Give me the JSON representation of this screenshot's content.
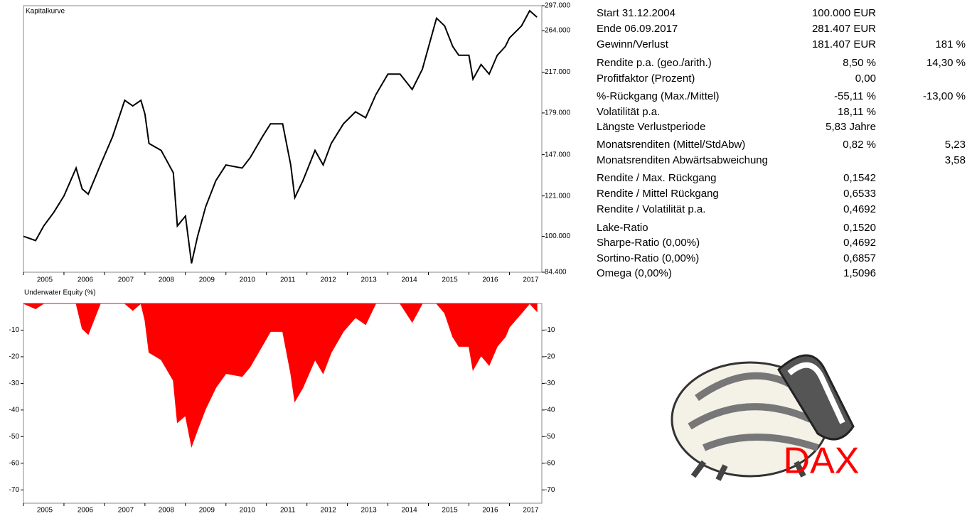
{
  "chart_data": [
    {
      "type": "line",
      "title": "Kapitalkurve",
      "log_y": true,
      "color": "#000000",
      "x": [
        2005.0,
        2005.3,
        2005.5,
        2005.75,
        2006.0,
        2006.3,
        2006.45,
        2006.6,
        2006.9,
        2007.2,
        2007.5,
        2007.7,
        2007.9,
        2008.0,
        2008.1,
        2008.4,
        2008.7,
        2008.8,
        2009.0,
        2009.15,
        2009.3,
        2009.5,
        2009.75,
        2010.0,
        2010.4,
        2010.6,
        2010.9,
        2011.1,
        2011.4,
        2011.6,
        2011.7,
        2011.9,
        2012.2,
        2012.4,
        2012.6,
        2012.9,
        2013.2,
        2013.45,
        2013.7,
        2014.0,
        2014.3,
        2014.6,
        2014.85,
        2015.2,
        2015.4,
        2015.6,
        2015.75,
        2016.0,
        2016.1,
        2016.3,
        2016.5,
        2016.7,
        2016.9,
        2017.0,
        2017.3,
        2017.5,
        2017.68
      ],
      "values": [
        100000,
        98000,
        105000,
        112000,
        121000,
        138000,
        125000,
        122000,
        140000,
        160000,
        190000,
        185000,
        190000,
        178000,
        155000,
        150000,
        135000,
        105000,
        110000,
        88000,
        100000,
        115000,
        130000,
        140000,
        138000,
        145000,
        160000,
        170000,
        170000,
        140000,
        120000,
        130000,
        150000,
        140000,
        155000,
        170000,
        180000,
        175000,
        195000,
        215000,
        215000,
        200000,
        220000,
        280000,
        270000,
        245000,
        235000,
        235000,
        210000,
        225000,
        215000,
        235000,
        245000,
        255000,
        270000,
        290000,
        281407
      ],
      "xlim": [
        2005,
        2017.8
      ],
      "xticks": [
        2005,
        2006,
        2007,
        2008,
        2009,
        2010,
        2011,
        2012,
        2013,
        2014,
        2015,
        2016,
        2017
      ],
      "ylim": [
        84400,
        297000
      ],
      "yticks": [
        {
          "value": 84400,
          "label": "84.400"
        },
        {
          "value": 100000,
          "label": "100.000"
        },
        {
          "value": 121000,
          "label": "121.000"
        },
        {
          "value": 147000,
          "label": "147.000"
        },
        {
          "value": 179000,
          "label": "179.000"
        },
        {
          "value": 217000,
          "label": "217.000"
        },
        {
          "value": 264000,
          "label": "264.000"
        },
        {
          "value": 297000,
          "label": "297.000"
        }
      ]
    },
    {
      "type": "area",
      "title": "Underwater Equity (%)",
      "color": "#ff0000",
      "x": [
        2005.0,
        2005.3,
        2005.5,
        2005.75,
        2006.0,
        2006.3,
        2006.45,
        2006.6,
        2006.9,
        2007.2,
        2007.5,
        2007.7,
        2007.9,
        2008.0,
        2008.1,
        2008.4,
        2008.7,
        2008.8,
        2009.0,
        2009.15,
        2009.3,
        2009.5,
        2009.75,
        2010.0,
        2010.4,
        2010.6,
        2010.9,
        2011.1,
        2011.4,
        2011.6,
        2011.7,
        2011.9,
        2012.2,
        2012.4,
        2012.6,
        2012.9,
        2013.2,
        2013.45,
        2013.7,
        2014.0,
        2014.3,
        2014.6,
        2014.85,
        2015.2,
        2015.4,
        2015.6,
        2015.75,
        2016.0,
        2016.1,
        2016.3,
        2016.5,
        2016.7,
        2016.9,
        2017.0,
        2017.3,
        2017.5,
        2017.68
      ],
      "values": [
        0,
        -2,
        0,
        0,
        0,
        0,
        -9.4,
        -11.6,
        0,
        0,
        0,
        -2.6,
        0,
        -6.3,
        -18.4,
        -21.1,
        -28.9,
        -44.7,
        -42.1,
        -53.7,
        -47.4,
        -39.5,
        -31.6,
        -26.3,
        -27.4,
        -23.7,
        -15.8,
        -10.5,
        -10.5,
        -26.3,
        -36.8,
        -31.6,
        -21.1,
        -26.3,
        -18.4,
        -10.5,
        -5.3,
        -7.9,
        0,
        0,
        0,
        -7,
        0,
        0,
        -3.6,
        -12.5,
        -16.1,
        -16.1,
        -25,
        -19.6,
        -23.2,
        -16.1,
        -12.5,
        -8.9,
        -3.6,
        0,
        -3
      ],
      "xlim": [
        2005,
        2017.8
      ],
      "xticks": [
        2005,
        2006,
        2007,
        2008,
        2009,
        2010,
        2011,
        2012,
        2013,
        2014,
        2015,
        2016,
        2017
      ],
      "ylim": [
        -75,
        0
      ],
      "yticks": [
        -10,
        -20,
        -30,
        -40,
        -50,
        -60,
        -70
      ]
    }
  ],
  "stats": {
    "rows": [
      {
        "label": "Start  31.12.2004",
        "value": "100.000 EUR"
      },
      {
        "label": "Ende 06.09.2017",
        "value": "281.407 EUR"
      },
      {
        "label": "Gewinn/Verlust",
        "value": "181.407 EUR",
        "value2": "181 %"
      },
      {
        "label": "Rendite p.a. (geo./arith.)",
        "value": "8,50 %",
        "value2": "14,30 %"
      },
      {
        "label": "Profitfaktor (Prozent)",
        "value": "0,00"
      },
      {
        "label": "%-Rückgang (Max./Mittel)",
        "value": "-55,11 %",
        "value2": "-13,00 %"
      },
      {
        "label": "Volatilität p.a.",
        "value": "18,11 %"
      },
      {
        "label": "Längste Verlustperiode",
        "value": "5,83  Jahre"
      },
      {
        "label": "Monatsrenditen (Mittel/StdAbw)",
        "value": "0,82 %",
        "value2": "5,23"
      },
      {
        "label": "Monatsrenditen Abwärtsabweichung",
        "value2": "3,58"
      },
      {
        "label": "Rendite / Max. Rückgang",
        "value": "0,1542"
      },
      {
        "label": "Rendite / Mittel Rückgang",
        "value": "0,6533"
      },
      {
        "label": "Rendite / Volatilität p.a.",
        "value": "0,4692"
      },
      {
        "label": "Lake-Ratio",
        "value": "0,1520"
      },
      {
        "label": "Sharpe-Ratio (0,00%)",
        "value": "0,4692"
      },
      {
        "label": "Sortino-Ratio (0,00%)",
        "value": "0,6857"
      },
      {
        "label": "Omega (0,00%)",
        "value": "1,5096"
      }
    ]
  },
  "logo": {
    "text": "DAX"
  }
}
